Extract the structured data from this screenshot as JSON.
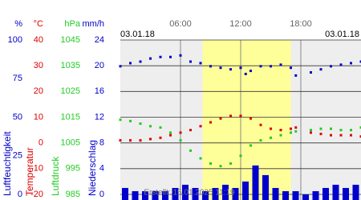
{
  "chart_data": {
    "type": "weather",
    "date_left": "03.01.18",
    "date_right": "03.01.18",
    "footer": "Erstellt: 15.01.2025 11:19",
    "xlim": [
      0,
      24
    ],
    "xticks": [
      {
        "value": 6,
        "label": "06:00"
      },
      {
        "value": 12,
        "label": "12:00"
      },
      {
        "value": 18,
        "label": "18:00"
      }
    ],
    "daylight": [
      8.2,
      17.0
    ],
    "axes": [
      {
        "unit": "%",
        "label": "Luftfeuchtigkeit",
        "color": "#0000cc",
        "ylim": [
          0,
          100
        ],
        "yticks": [
          0,
          25,
          50,
          75,
          100
        ]
      },
      {
        "unit": "°C",
        "label": "Temperatur",
        "color": "#dd0000",
        "ylim": [
          -20,
          40
        ],
        "yticks": [
          -20,
          -10,
          0,
          10,
          20,
          30,
          40
        ]
      },
      {
        "unit": "hPa",
        "label": "Luftdruck",
        "color": "#22cc22",
        "ylim": [
          985,
          1045
        ],
        "yticks": [
          985,
          995,
          1005,
          1015,
          1025,
          1035,
          1045
        ]
      },
      {
        "unit": "mm/h",
        "label": "Niederschlag",
        "color": "#0000cc",
        "ylim": [
          0,
          24
        ],
        "yticks": [
          0,
          4,
          8,
          12,
          16,
          20,
          24
        ]
      }
    ],
    "grid": true,
    "series": [
      {
        "kind": "dots",
        "axis": 0,
        "color": "#0000cc",
        "x": [
          0,
          1,
          2,
          3,
          4,
          5,
          6,
          7,
          8,
          9,
          10,
          11,
          12,
          12.5,
          13,
          14,
          15,
          16,
          17,
          17.5,
          18,
          19,
          20,
          21,
          22,
          23,
          24
        ],
        "values": [
          83,
          85,
          86,
          88,
          89,
          89,
          90,
          86,
          85,
          83,
          82,
          81,
          82,
          78,
          80,
          83,
          83,
          84,
          82,
          77,
          null,
          79,
          81,
          83,
          84,
          85,
          86
        ]
      },
      {
        "kind": "dots",
        "axis": 1,
        "color": "#dd0000",
        "x": [
          0,
          1,
          2,
          3,
          4,
          5,
          6,
          7,
          8,
          9,
          10,
          11,
          12,
          13,
          14,
          15,
          16,
          17,
          17.5,
          18,
          19,
          20,
          21,
          22,
          23,
          24
        ],
        "values": [
          1,
          1,
          1,
          1.5,
          2,
          3,
          4,
          5,
          6.5,
          8,
          9.5,
          10.5,
          10.5,
          9.5,
          7,
          5.5,
          5,
          5.5,
          6,
          null,
          4,
          3.5,
          3,
          3,
          3,
          2.5
        ]
      },
      {
        "kind": "dots",
        "axis": 2,
        "color": "#22cc22",
        "x": [
          0,
          1,
          2,
          3,
          4,
          5,
          6,
          7,
          8,
          9,
          10,
          11,
          12,
          13,
          14,
          15,
          16,
          17,
          17.5,
          18,
          19,
          20,
          21,
          22,
          23,
          24
        ],
        "values": [
          1014,
          1013.5,
          1012.5,
          1011.5,
          1011,
          1009,
          1006,
          1002,
          999,
          997,
          996,
          997,
          1000,
          1004,
          1006,
          1007,
          1008,
          1009,
          1009.5,
          null,
          1010,
          1010.5,
          1010.5,
          1010,
          1010,
          1011
        ]
      },
      {
        "kind": "bars",
        "axis": 3,
        "color": "#0000cc",
        "x": [
          0,
          1,
          2,
          3,
          4,
          5,
          6,
          7,
          8,
          9,
          10,
          11,
          12,
          13,
          14,
          15,
          16,
          17,
          18,
          19,
          20,
          21,
          22,
          23
        ],
        "values": [
          1,
          0.5,
          0.5,
          0.5,
          0.5,
          1,
          1.5,
          1,
          0.5,
          1,
          1.5,
          1,
          2,
          4.5,
          3,
          1,
          0.5,
          0.5,
          0,
          0.5,
          1,
          1.5,
          1,
          1.5
        ]
      }
    ]
  }
}
